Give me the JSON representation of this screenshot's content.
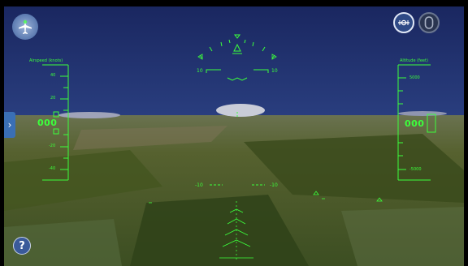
{
  "hud": {
    "airspeed": {
      "label": "Airspeed (knots)",
      "ticks": [
        "40",
        "20",
        "-20",
        "-40"
      ],
      "readout": "000"
    },
    "altitude": {
      "label": "Altitude (feet)",
      "ticks": [
        "5000",
        "-5000"
      ],
      "readout": "000"
    },
    "pitch": {
      "upper_left": "10",
      "upper_right": "10",
      "lower_left": "-10",
      "lower_right": "-10"
    }
  },
  "controls": {
    "help_label": "?",
    "side_tab_label": "›"
  },
  "colors": {
    "hud": "#3cff3c",
    "sky": "#1e2c64",
    "ground": "#4a5a2c",
    "button": "#3a6fb5"
  }
}
